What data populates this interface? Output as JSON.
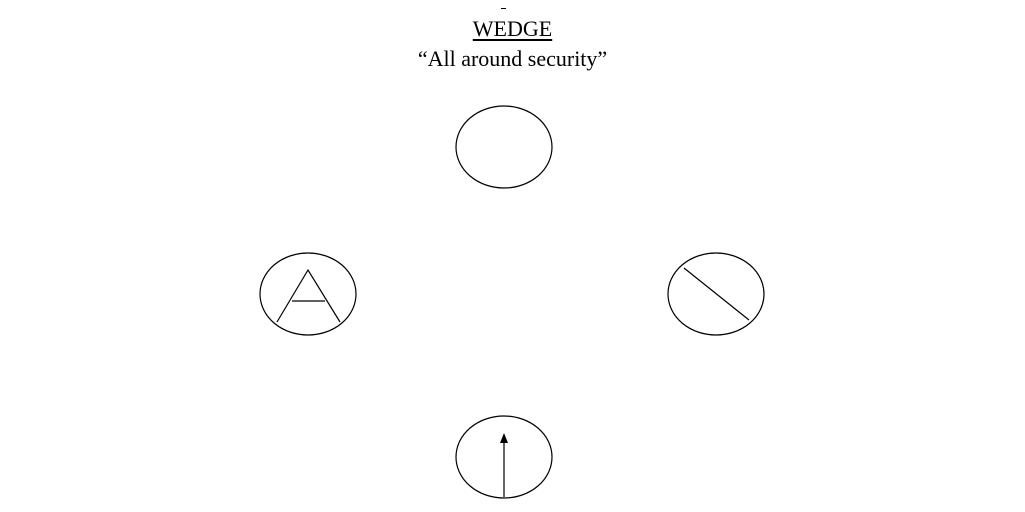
{
  "diagram": {
    "title": "WEDGE",
    "subtitle": "“All around security”",
    "positions": [
      {
        "role": "front",
        "symbol": "empty-oval"
      },
      {
        "role": "left",
        "symbol": "inverted-v-with-bar"
      },
      {
        "role": "right",
        "symbol": "diagonal-line"
      },
      {
        "role": "rear",
        "symbol": "up-arrow"
      }
    ],
    "stroke_color": "#000000",
    "background_color": "#ffffff"
  }
}
